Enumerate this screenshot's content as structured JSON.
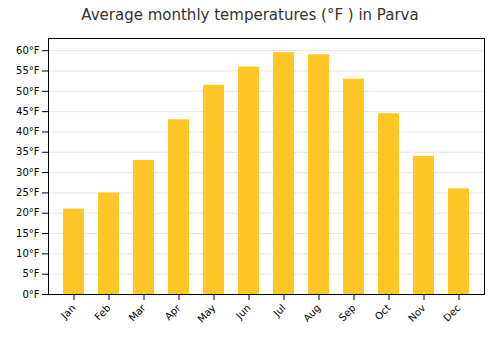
{
  "chart_data": {
    "type": "bar",
    "title": "Average monthly temperatures (°F ) in Parva",
    "categories": [
      "Jan",
      "Feb",
      "Mar",
      "Apr",
      "May",
      "Jun",
      "Jul",
      "Aug",
      "Sep",
      "Oct",
      "Nov",
      "Dec"
    ],
    "values": [
      21,
      25,
      33,
      43,
      51.5,
      56,
      59.5,
      59,
      53,
      44.5,
      34,
      26
    ],
    "color": "#FFC726",
    "ylim": [
      0,
      63
    ],
    "yticks": [
      {
        "value": 0,
        "label": "0°F"
      },
      {
        "value": 5,
        "label": "5°F"
      },
      {
        "value": 10,
        "label": "10°F"
      },
      {
        "value": 15,
        "label": "15°F"
      },
      {
        "value": 20,
        "label": "20°F"
      },
      {
        "value": 25,
        "label": "25°F"
      },
      {
        "value": 30,
        "label": "30°F"
      },
      {
        "value": 35,
        "label": "35°F"
      },
      {
        "value": 40,
        "label": "40°F"
      },
      {
        "value": 45,
        "label": "45°F"
      },
      {
        "value": 50,
        "label": "50°F"
      },
      {
        "value": 55,
        "label": "55°F"
      },
      {
        "value": 60,
        "label": "60°F"
      }
    ],
    "grid": true
  }
}
